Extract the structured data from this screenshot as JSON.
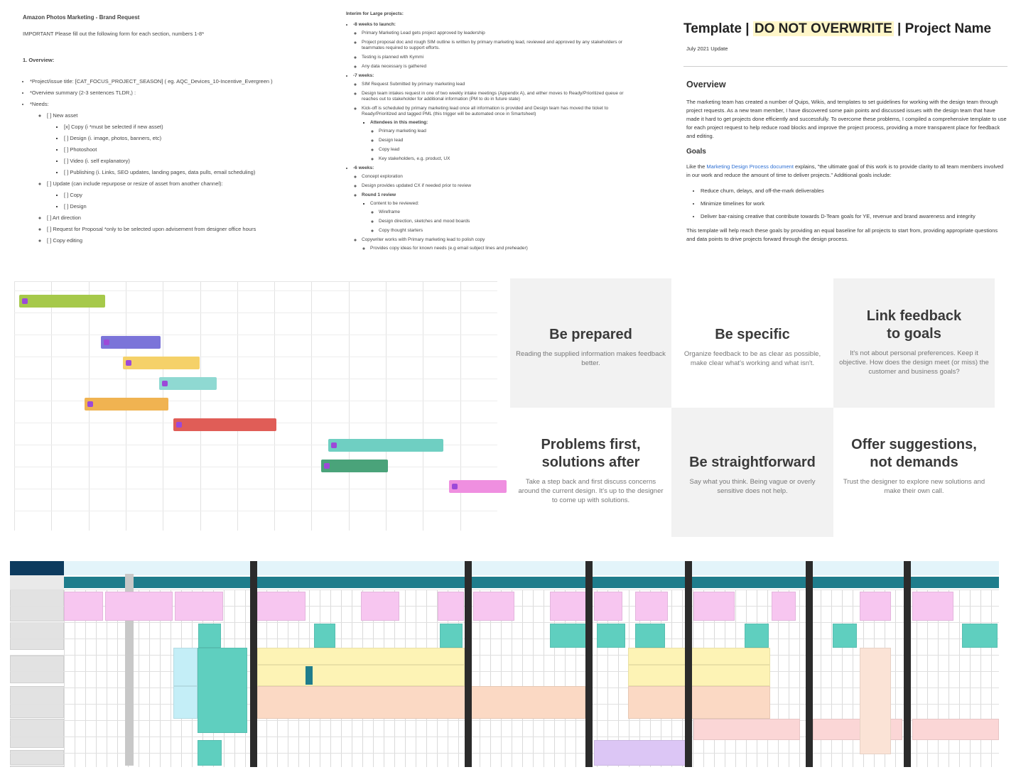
{
  "brief": {
    "title": "Amazon Photos Marketing - Brand Request",
    "important": "IMPORTANT Please fill out the following form for each section, numbers 1-8*",
    "section": "1. Overview:",
    "items": [
      "*Project/issue title: [CAT_FOCUS_PROJECT_SEASON] ( eg. AQC_Devices_10-Incentive_Evergreen )",
      "*Overview summary (2-3 sentences TLDR,) :",
      "*Needs:"
    ],
    "needs": [
      "[ ] New asset",
      "[x] Copy (i *must be selected if new asset)",
      "[ ] Design (i. image, photos, banners, etc)",
      "[ ] Photoshoot",
      "[ ] Video (i. self explanatory)",
      "[ ] Publishing (i. Links, SEO updates, landing pages, data pulls, email scheduling)",
      "[ ] Update (can include repurpose or resize of asset from another channel):",
      "[ ] Copy",
      "[ ] Design",
      "[ ] Art direction",
      "[ ] Request for Proposal *only to be selected upon advisement from designer office hours",
      "[ ] Copy editing"
    ]
  },
  "interim": {
    "heading": "Interim for Large projects:",
    "w8": "-8 weeks to launch:",
    "w8_items": [
      "Primary Marketing Lead gets project approved by leadership",
      "Project proposal doc and rough SIM outline is written by primary marketing lead, reviewed and approved by any stakeholders or teammates required to support efforts.",
      "Testing is planned with Kymmi",
      "Any data necessary is gathered"
    ],
    "w7": "-7 weeks:",
    "w7_items": [
      "SIM Request Submitted by primary marketing lead",
      "Design team intakes request in one of two weekly intake meetings (Appendix A), and either moves to Ready/Prioritized queue or reaches out to stakeholder for additional information (PM to do in future state)",
      "Kick-off is scheduled by primary marketing lead once all information is provided and Design team has moved the ticket to Ready/Prioritized and tagged PML (this trigger will be automated once in Smartsheet)"
    ],
    "attendees": "Attendees in this meeting:",
    "attendee_list": [
      "Primary marketing lead",
      "Design lead",
      "Copy lead",
      "Key stakeholders, e.g. product, UX"
    ],
    "w6": "-6 weeks:",
    "w6_items": [
      "Concept exploration",
      "Design provides updated CX if needed prior to review",
      "Round 1 review"
    ],
    "content": "Content to be reviewed:",
    "content_list": [
      "Wireframe",
      "Design direction, sketches and mood boards",
      "Copy thought starters"
    ],
    "copywriter": "Copywriter works with Primary marketing lead to polish copy",
    "copy_sub": "Provides copy ideas for known needs (e.g email subject lines and preheader)"
  },
  "template": {
    "title_a": "Template | ",
    "title_hl": "DO NOT OVERWRITE",
    "title_b": " | Project Name",
    "update": "July 2021 Update",
    "overview_h": "Overview",
    "overview_p": "The marketing team has created a number of Quips, Wikis, and templates to set guidelines for working with the design team through project requests. As a new team member, I have discovered some pain points and discussed issues with the design team that have made it hard to get projects done efficiently and successfully. To overcome these problems, I compiled a comprehensive template to use for each project request to help reduce road blocks and improve the project process, providing a more transparent place for feedback and editing.",
    "goals_h": "Goals",
    "goals_pre": "Like the ",
    "goals_link": "Marketing Design Process document",
    "goals_post": " explains, \"the ultimate goal of this work is to provide clarity to all team members involved in our work and reduce the amount of time to deliver projects.\" Additional goals include:",
    "goals": [
      "Reduce churn, delays, and off-the-mark deliverables",
      "Minimize timelines for work",
      "Deliver bar-raising creative that contribute towards D-Team goals for YE, revenue and brand awareness and integrity"
    ],
    "closing": "This template will help reach these goals by providing an equal baseline for all projects to start from, providing appropriate questions and data points to drive projects forward through the design process."
  },
  "feedback": [
    {
      "title": "Be prepared",
      "desc": "Reading the supplied information makes feedback better."
    },
    {
      "title": "Be specific",
      "desc": "Organize feedback to be as clear as possible, make clear what's working and what isn't."
    },
    {
      "title": "Link feedback to goals",
      "desc": "It's not about personal preferences. Keep it objective. How does the design meet (or miss) the customer and business goals?"
    },
    {
      "title": "Problems first, solutions after",
      "desc": "Take a step back and first discuss concerns around the current design. It's up to the designer to come up with solutions."
    },
    {
      "title": "Be straightforward",
      "desc": "Say what you think. Being vague or overly sensitive does not help."
    },
    {
      "title": "Offer suggestions, not demands",
      "desc": "Trust the designer to explore new solutions and make their own call."
    }
  ],
  "colors": {
    "highlight": "#fff6c8",
    "link": "#2d6fd3",
    "table_header": "#0d3b5e",
    "table_teal": "#1f7d8c",
    "pink": "#f7c6f0",
    "yellow": "#fdf3b5",
    "peach": "#fbd9c4",
    "teal": "#5fcfbf",
    "cyan": "#c4eef7",
    "purple": "#dcc6f5"
  },
  "gantt_bars": [
    {
      "row": 0,
      "start": 0.01,
      "len": 0.155,
      "color": "#a6c94a"
    },
    {
      "row": 2,
      "start": 0.18,
      "len": 0.1,
      "color": "#7b74d9"
    },
    {
      "row": 3,
      "start": 0.225,
      "len": 0.135,
      "color": "#f5d169"
    },
    {
      "row": 4,
      "start": 0.3,
      "len": 0.095,
      "color": "#8fd9d2"
    },
    {
      "row": 5,
      "start": 0.145,
      "len": 0.15,
      "color": "#f0b351"
    },
    {
      "row": 6,
      "start": 0.33,
      "len": 0.19,
      "color": "#e05d57"
    },
    {
      "row": 7,
      "start": 0.65,
      "len": 0.215,
      "color": "#6fcfc2"
    },
    {
      "row": 8,
      "start": 0.635,
      "len": 0.115,
      "color": "#4aa37a"
    },
    {
      "row": 9,
      "start": 0.9,
      "len": 0.095,
      "color": "#ef8fe0"
    }
  ]
}
